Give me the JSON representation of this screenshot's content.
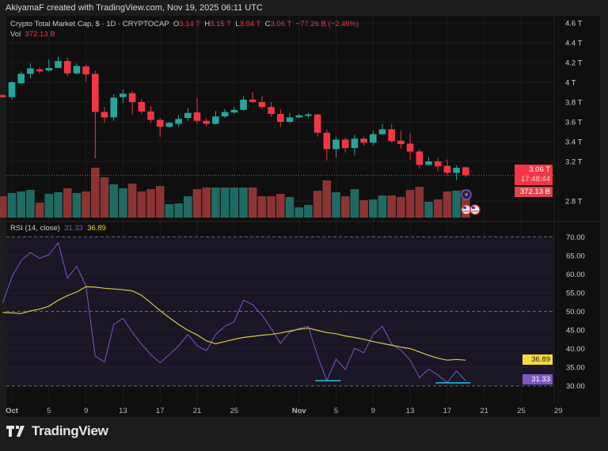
{
  "credit": "AkiyamaF created with TradingView.com, Nov 19, 2025 06:11 UTC",
  "legend": {
    "symbol": "Crypto Total Market Cap, $ · 1D · CRYPTOCAP",
    "o_label": "O",
    "o": "3.14 T",
    "h_label": "H",
    "h": "3.15 T",
    "l_label": "L",
    "l": "3.04 T",
    "c_label": "C",
    "c": "3.06 T",
    "change": "−77.26 B (−2.46%)",
    "vol_label": "Vol",
    "vol": "372.13 B"
  },
  "rsi_legend": {
    "label": "RSI (14, close)",
    "rsi": "31.33",
    "ma": "36.89"
  },
  "price_tags": {
    "price": "3.06 T",
    "countdown": "17:48:44",
    "volume": "372.13 B"
  },
  "rsi_tags": {
    "ma": "36.89",
    "rsi": "31.33"
  },
  "footer": {
    "brand": "TradingView"
  },
  "colors": {
    "up": "#26a69a",
    "down": "#f23645",
    "vol_up": "#1f6b63",
    "vol_down": "#8c3434",
    "rsi": "#7e57c2",
    "rsi_ma": "#d9c44a",
    "bg": "#0f0f0f",
    "rsi_band": "#1a1626",
    "divergence": "#22c7e0"
  },
  "icons": [
    "lightning-event-icon",
    "us-flag-event-icon",
    "us-flag-event-icon"
  ],
  "chart_data": [
    {
      "type": "candlestick",
      "title": "Crypto Total Market Cap, $ · 1D · CRYPTOCAP",
      "y_ticks": [
        "4.6 T",
        "4.4 T",
        "4.2 T",
        "4 T",
        "3.8 T",
        "3.6 T",
        "3.4 T",
        "3.2 T",
        "2.8 T"
      ],
      "y_tick_values": [
        4.6,
        4.4,
        4.2,
        4.0,
        3.8,
        3.6,
        3.4,
        3.2,
        2.8
      ],
      "x_ticks": [
        "Oct",
        "5",
        "9",
        "13",
        "17",
        "21",
        "25",
        "Nov",
        "5",
        "9",
        "13",
        "17",
        "21",
        "25",
        "29"
      ],
      "x_tick_dates": [
        "2025-10-01",
        "2025-10-05",
        "2025-10-09",
        "2025-10-13",
        "2025-10-17",
        "2025-10-21",
        "2025-10-25",
        "2025-11-01",
        "2025-11-05",
        "2025-11-09",
        "2025-11-13",
        "2025-11-17",
        "2025-11-21",
        "2025-11-25",
        "2025-11-29"
      ],
      "units": "T USD (volume in B USD)",
      "columns": [
        "date",
        "open",
        "high",
        "low",
        "close",
        "volume"
      ],
      "candles": [
        [
          "2025-09-30",
          3.87,
          3.88,
          3.84,
          3.85,
          286
        ],
        [
          "2025-10-01",
          3.85,
          4.01,
          3.83,
          4.0,
          329
        ],
        [
          "2025-10-02",
          3.99,
          4.11,
          3.98,
          4.085,
          350
        ],
        [
          "2025-10-03",
          4.085,
          4.19,
          4.04,
          4.14,
          371
        ],
        [
          "2025-10-04",
          4.13,
          4.15,
          4.09,
          4.11,
          201
        ],
        [
          "2025-10-05",
          4.12,
          4.23,
          4.11,
          4.145,
          318
        ],
        [
          "2025-10-06",
          4.145,
          4.26,
          4.14,
          4.215,
          339
        ],
        [
          "2025-10-07",
          4.215,
          4.25,
          4.06,
          4.09,
          392
        ],
        [
          "2025-10-08",
          4.09,
          4.19,
          4.08,
          4.165,
          329
        ],
        [
          "2025-10-09",
          4.16,
          4.18,
          4.005,
          4.08,
          350
        ],
        [
          "2025-10-10",
          4.085,
          4.12,
          3.23,
          3.7,
          668
        ],
        [
          "2025-10-11",
          3.7,
          3.75,
          3.59,
          3.645,
          541
        ],
        [
          "2025-10-12",
          3.645,
          3.88,
          3.61,
          3.845,
          445
        ],
        [
          "2025-10-13",
          3.85,
          3.93,
          3.79,
          3.885,
          392
        ],
        [
          "2025-10-14",
          3.89,
          3.91,
          3.67,
          3.8,
          456
        ],
        [
          "2025-10-15",
          3.8,
          3.83,
          3.68,
          3.705,
          350
        ],
        [
          "2025-10-16",
          3.705,
          3.76,
          3.59,
          3.62,
          382
        ],
        [
          "2025-10-17",
          3.62,
          3.64,
          3.45,
          3.55,
          424
        ],
        [
          "2025-10-18",
          3.55,
          3.6,
          3.54,
          3.59,
          180
        ],
        [
          "2025-10-19",
          3.58,
          3.67,
          3.55,
          3.63,
          191
        ],
        [
          "2025-10-20",
          3.64,
          3.74,
          3.61,
          3.69,
          286
        ],
        [
          "2025-10-21",
          3.695,
          3.84,
          3.58,
          3.61,
          382
        ],
        [
          "2025-10-22",
          3.61,
          3.635,
          3.55,
          3.58,
          403
        ],
        [
          "2025-10-23",
          3.58,
          3.71,
          3.57,
          3.655,
          403
        ],
        [
          "2025-10-24",
          3.655,
          3.73,
          3.64,
          3.7,
          403
        ],
        [
          "2025-10-25",
          3.695,
          3.75,
          3.68,
          3.72,
          403
        ],
        [
          "2025-10-26",
          3.72,
          3.86,
          3.71,
          3.825,
          403
        ],
        [
          "2025-10-27",
          3.825,
          3.9,
          3.79,
          3.8,
          403
        ],
        [
          "2025-10-28",
          3.8,
          3.86,
          3.73,
          3.75,
          286
        ],
        [
          "2025-10-29",
          3.75,
          3.8,
          3.65,
          3.68,
          286
        ],
        [
          "2025-10-30",
          3.68,
          3.725,
          3.55,
          3.6,
          318
        ],
        [
          "2025-10-31",
          3.6,
          3.69,
          3.59,
          3.645,
          276
        ],
        [
          "2025-11-01",
          3.645,
          3.68,
          3.64,
          3.665,
          138
        ],
        [
          "2025-11-02",
          3.66,
          3.69,
          3.64,
          3.675,
          170
        ],
        [
          "2025-11-03",
          3.675,
          3.68,
          3.45,
          3.49,
          360
        ],
        [
          "2025-11-04",
          3.49,
          3.52,
          3.21,
          3.325,
          498
        ],
        [
          "2025-11-05",
          3.325,
          3.45,
          3.24,
          3.42,
          339
        ],
        [
          "2025-11-06",
          3.42,
          3.44,
          3.29,
          3.335,
          286
        ],
        [
          "2025-11-07",
          3.335,
          3.47,
          3.26,
          3.43,
          382
        ],
        [
          "2025-11-08",
          3.43,
          3.45,
          3.36,
          3.39,
          233
        ],
        [
          "2025-11-09",
          3.39,
          3.51,
          3.36,
          3.475,
          244
        ],
        [
          "2025-11-10",
          3.475,
          3.575,
          3.48,
          3.525,
          297
        ],
        [
          "2025-11-11",
          3.525,
          3.58,
          3.39,
          3.405,
          297
        ],
        [
          "2025-11-12",
          3.41,
          3.51,
          3.33,
          3.375,
          276
        ],
        [
          "2025-11-13",
          3.38,
          3.49,
          3.22,
          3.3,
          371
        ],
        [
          "2025-11-14",
          3.3,
          3.32,
          3.13,
          3.165,
          413
        ],
        [
          "2025-11-15",
          3.165,
          3.24,
          3.16,
          3.2,
          212
        ],
        [
          "2025-11-16",
          3.2,
          3.24,
          3.1,
          3.15,
          244
        ],
        [
          "2025-11-17",
          3.155,
          3.22,
          3.06,
          3.085,
          350
        ],
        [
          "2025-11-18",
          3.085,
          3.16,
          3.01,
          3.135,
          360
        ],
        [
          "2025-11-19",
          3.14,
          3.15,
          3.04,
          3.06,
          372.13
        ]
      ],
      "last_price": 3.06
    },
    {
      "type": "line",
      "title": "RSI (14, close)",
      "y_ticks": [
        "70.00",
        "65.00",
        "60.00",
        "55.00",
        "50.00",
        "45.00",
        "40.00",
        "35.00",
        "30.00"
      ],
      "y_tick_values": [
        70,
        65,
        60,
        55,
        50,
        45,
        40,
        35,
        30
      ],
      "ylim": [
        30,
        70
      ],
      "band": [
        30,
        70
      ],
      "dashed_levels": [
        70,
        50,
        30
      ],
      "series": [
        {
          "name": "RSI",
          "color": "#7e57c2",
          "values": [
            52.2,
            59.2,
            63.6,
            65.8,
            64.2,
            65.2,
            68.4,
            58.9,
            62.1,
            56.8,
            38.0,
            36.4,
            46.5,
            48.1,
            44.4,
            41.2,
            38.4,
            36.2,
            38.4,
            40.7,
            43.8,
            40.8,
            39.4,
            43.8,
            46.0,
            47.2,
            53.0,
            51.8,
            49.0,
            45.4,
            41.4,
            44.4,
            45.4,
            46.0,
            38.0,
            31.4,
            37.2,
            34.4,
            40.1,
            38.9,
            43.8,
            46.0,
            41.2,
            39.6,
            36.9,
            32.2,
            34.5,
            32.9,
            30.9,
            34.0,
            31.33
          ]
        },
        {
          "name": "RSI-based MA",
          "color": "#d9c44a",
          "values": [
            49.7,
            49.6,
            49.4,
            50.1,
            50.6,
            51.4,
            53.0,
            54.2,
            55.2,
            56.6,
            56.5,
            56.2,
            56.0,
            55.8,
            55.5,
            54.3,
            52.3,
            50.2,
            48.3,
            46.5,
            44.9,
            43.7,
            42.1,
            41.3,
            41.9,
            42.5,
            43.0,
            43.3,
            43.6,
            43.8,
            44.2,
            44.7,
            45.2,
            45.5,
            44.9,
            44.3,
            44.0,
            43.4,
            43.0,
            42.5,
            41.9,
            41.4,
            40.9,
            40.4,
            40.0,
            39.1,
            38.2,
            37.4,
            36.9,
            37.1,
            36.89
          ]
        }
      ],
      "annotations": [
        {
          "type": "horizontal-segment",
          "from": "2025-11-03",
          "to": "2025-11-05",
          "value": 31.4
        },
        {
          "type": "horizontal-segment",
          "from": "2025-11-16",
          "to": "2025-11-19",
          "value": 30.8
        }
      ]
    }
  ]
}
